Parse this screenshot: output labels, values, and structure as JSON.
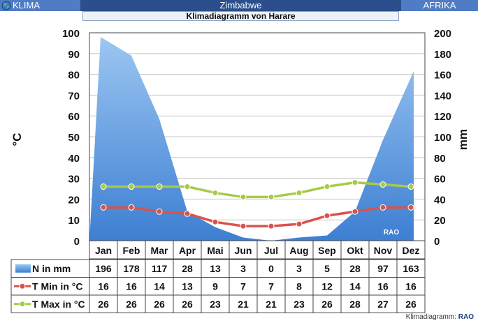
{
  "header": {
    "left": "KLIMA",
    "country": "Zimbabwe",
    "right": "AFRIKA",
    "subtitle": "Klimadiagramm von Harare"
  },
  "icons": {
    "globe": "globe-icon"
  },
  "footer": {
    "label": "Klimadiagramm:",
    "brand": "RAO"
  },
  "chart_data": {
    "type": "area",
    "categories": [
      "Jan",
      "Feb",
      "Mar",
      "Apr",
      "Mai",
      "Jun",
      "Jul",
      "Aug",
      "Sep",
      "Okt",
      "Nov",
      "Dez"
    ],
    "ylabel_left": "°C",
    "ylabel_right": "mm",
    "ylim_left": [
      0,
      100
    ],
    "ylim_right": [
      0,
      200
    ],
    "yticks_left": [
      0,
      10,
      20,
      30,
      40,
      50,
      60,
      70,
      80,
      90,
      100
    ],
    "yticks_right": [
      0,
      20,
      40,
      60,
      80,
      100,
      120,
      140,
      160,
      180,
      200
    ],
    "watermark": "RAO",
    "grid": true,
    "series": [
      {
        "name": "N in mm",
        "type": "area",
        "axis": "right",
        "color": "#5b9be0",
        "values": [
          196,
          178,
          117,
          28,
          13,
          3,
          0,
          3,
          5,
          28,
          97,
          163
        ]
      },
      {
        "name": "T Min in °C",
        "type": "line",
        "axis": "left",
        "color": "#d9534a",
        "values": [
          16,
          16,
          14,
          13,
          9,
          7,
          7,
          8,
          12,
          14,
          16,
          16
        ]
      },
      {
        "name": "T Max in °C",
        "type": "line",
        "axis": "left",
        "color": "#a8c94a",
        "values": [
          26,
          26,
          26,
          26,
          23,
          21,
          21,
          23,
          26,
          28,
          27,
          26
        ]
      }
    ]
  }
}
